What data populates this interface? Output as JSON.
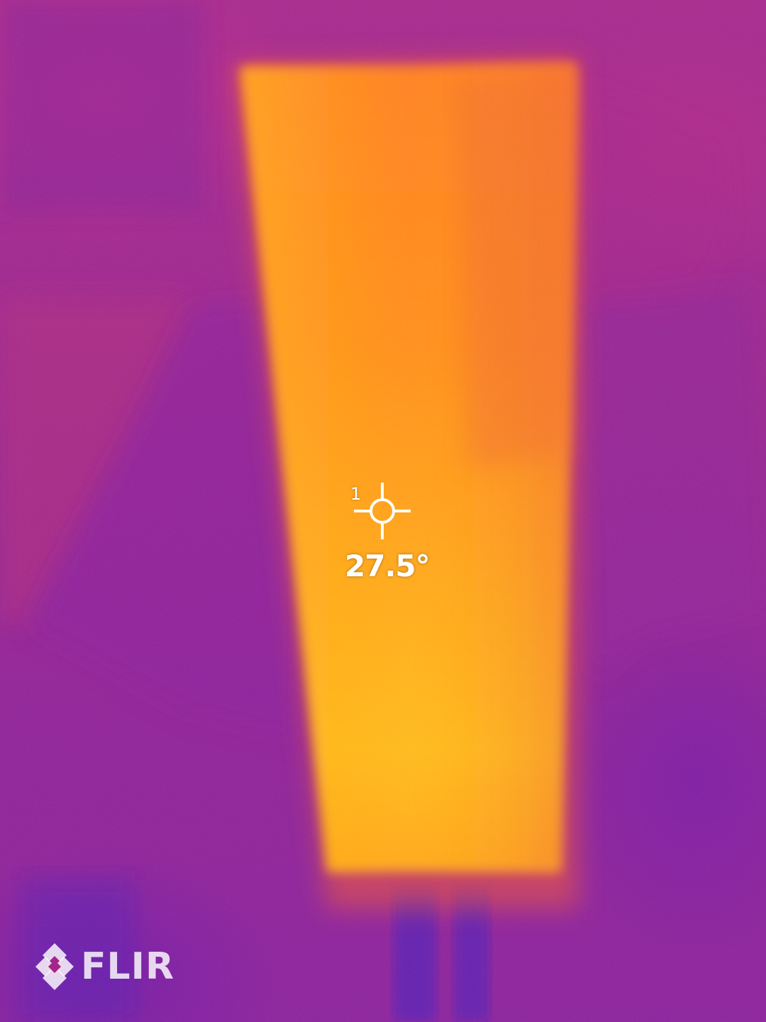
{
  "thermal_view": {
    "palette": "iron",
    "palette_colors": {
      "cold": "#6a1ea8",
      "cool": "#9a228d",
      "warm": "#ff7a1a",
      "hot": "#ffc21a"
    }
  },
  "spot_meter": {
    "index": "1",
    "temperature": "27.5°",
    "icon": "crosshair-icon"
  },
  "brand": {
    "logo_icon": "flir-diamond-icon",
    "name": "FLIR"
  }
}
